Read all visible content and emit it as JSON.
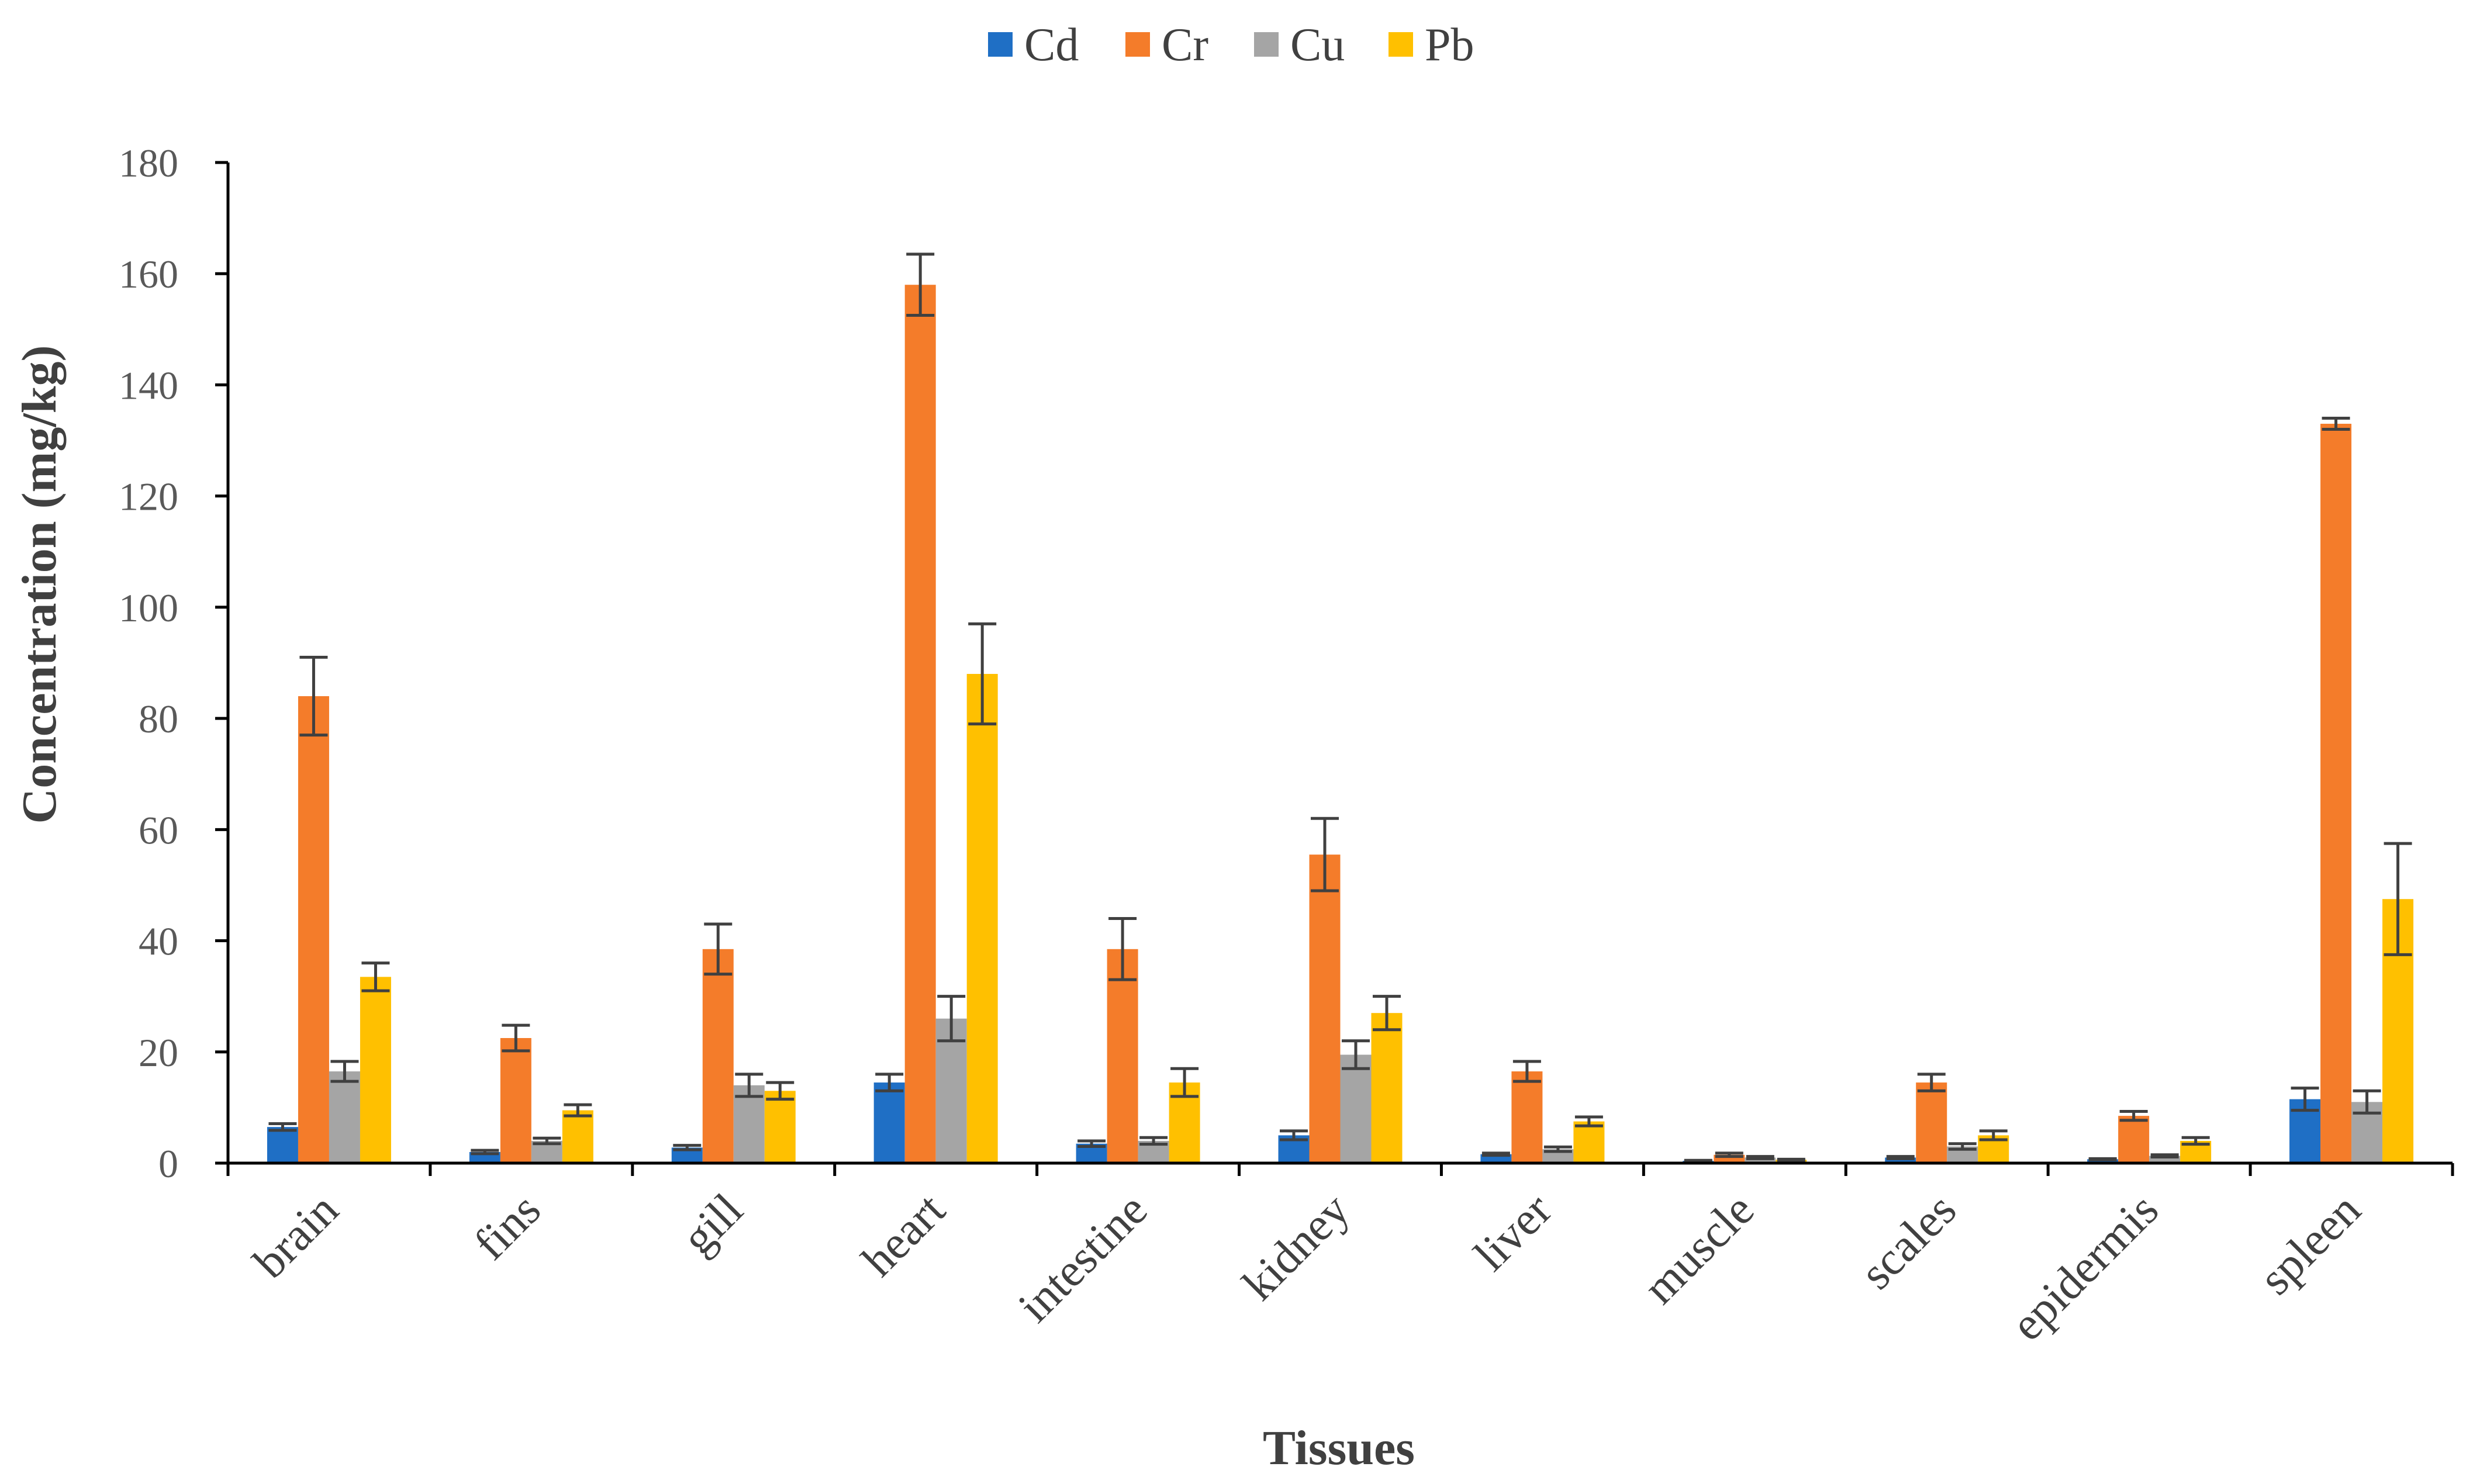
{
  "chart_data": {
    "type": "bar",
    "title": "",
    "xlabel": "Tissues",
    "ylabel": "Concentration (mg/kg)",
    "ylim": [
      0,
      180
    ],
    "yticks": [
      0,
      20,
      40,
      60,
      80,
      100,
      120,
      140,
      160,
      180
    ],
    "grid": false,
    "legend_position": "top-center",
    "categories": [
      "brain",
      "fins",
      "gill",
      "heart",
      "intestine",
      "kidney",
      "liver",
      "muscle",
      "scales",
      "epidermis",
      "spleen"
    ],
    "series": [
      {
        "name": "Cd",
        "color": "#1f6fc5",
        "values": [
          6.5,
          2.0,
          2.8,
          14.5,
          3.5,
          5.0,
          1.6,
          0.4,
          1.0,
          0.7,
          11.5
        ],
        "errors": [
          0.6,
          0.3,
          0.4,
          1.5,
          0.5,
          0.8,
          0.2,
          0.1,
          0.2,
          0.1,
          2.0
        ]
      },
      {
        "name": "Cr",
        "color": "#f47c2a",
        "values": [
          84.0,
          22.5,
          38.5,
          158.0,
          38.5,
          55.5,
          16.5,
          1.5,
          14.5,
          8.5,
          133.0
        ],
        "errors": [
          7.0,
          2.3,
          4.5,
          5.5,
          5.5,
          6.5,
          1.8,
          0.3,
          1.5,
          0.8,
          1.0
        ]
      },
      {
        "name": "Cu",
        "color": "#a5a5a5",
        "values": [
          16.5,
          4.0,
          14.0,
          26.0,
          4.0,
          19.5,
          2.5,
          1.0,
          3.0,
          1.3,
          11.0
        ],
        "errors": [
          1.8,
          0.5,
          2.0,
          4.0,
          0.6,
          2.5,
          0.4,
          0.2,
          0.5,
          0.2,
          2.0
        ]
      },
      {
        "name": "Pb",
        "color": "#ffc000",
        "values": [
          33.5,
          9.5,
          13.0,
          88.0,
          14.5,
          27.0,
          7.5,
          0.6,
          5.0,
          4.0,
          47.5
        ],
        "errors": [
          2.5,
          1.0,
          1.5,
          9.0,
          2.5,
          3.0,
          0.8,
          0.1,
          0.8,
          0.6,
          10.0
        ]
      }
    ],
    "error_bar_color": "#404040",
    "axis_color": "#000000"
  }
}
